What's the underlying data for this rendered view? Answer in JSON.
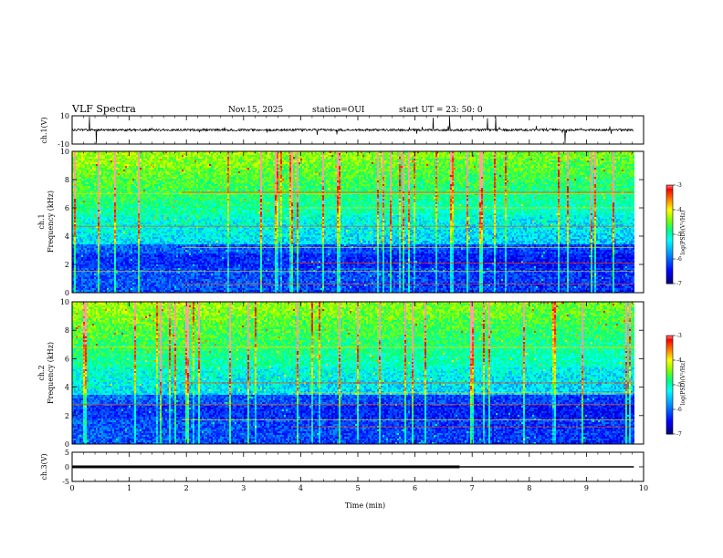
{
  "header": {
    "title": "VLF Spectra",
    "date": "Nov.15, 2025",
    "station": "station=OUI",
    "start": "start  UT  =   23: 50: 0"
  },
  "chart_data": [
    {
      "name": "ch1-waveform",
      "type": "line",
      "ylabel": "ch.1(V)",
      "ylim": [
        -10,
        10
      ],
      "yticks": [
        "10",
        "-10"
      ],
      "xlim": [
        0,
        10
      ],
      "baseline": 0,
      "data_end_min": 9.83
    },
    {
      "name": "ch1-spectrogram",
      "type": "heatmap",
      "ylabel_line1": "ch.1",
      "ylabel_line2": "Frequency  (kHz)",
      "xlim": [
        0,
        10
      ],
      "ylim": [
        0,
        10
      ],
      "yticks": [
        "0",
        "2",
        "4",
        "6",
        "8",
        "10"
      ],
      "data_end_min": 9.83,
      "colorbar": {
        "label": "log(PSD)(V²/Hz)",
        "range": [
          -7,
          -3
        ],
        "ticks": [
          "-3",
          "-4",
          "-5",
          "-6",
          "-7"
        ],
        "colormap": [
          "#000080",
          "#0000ff",
          "#00a0ff",
          "#00ffff",
          "#00ff80",
          "#80ff00",
          "#ffff00",
          "#ff8000",
          "#ff0000",
          "#ffffff"
        ]
      },
      "lines_khz": [
        7.0,
        7.1,
        6.0,
        4.7,
        3.2,
        2.1,
        1.5,
        0.6
      ]
    },
    {
      "name": "ch2-spectrogram",
      "type": "heatmap",
      "ylabel_line1": "ch.2",
      "ylabel_line2": "Frequency  (kHz)",
      "xlim": [
        0,
        10
      ],
      "ylim": [
        0,
        10
      ],
      "yticks": [
        "0",
        "2",
        "4",
        "6",
        "8",
        "10"
      ],
      "data_end_min": 9.83,
      "colorbar": {
        "label": "log(PSD)(V²/Hz)",
        "range": [
          -7,
          -3
        ],
        "ticks": [
          "-3",
          "-4",
          "-5",
          "-6",
          "-7"
        ],
        "colormap": [
          "#000080",
          "#0000ff",
          "#00a0ff",
          "#00ffff",
          "#00ff80",
          "#80ff00",
          "#ffff00",
          "#ff8000",
          "#ff0000",
          "#ffffff"
        ]
      },
      "lines_khz": [
        6.8,
        4.3,
        3.6,
        2.8,
        1.7,
        1.2
      ]
    },
    {
      "name": "ch3-waveform",
      "type": "line",
      "ylabel": "ch.3(V)",
      "ylim": [
        -5,
        5
      ],
      "yticks": [
        "5",
        "0",
        "-5"
      ],
      "xlim": [
        0,
        10
      ],
      "level": 0,
      "thick_end_min": 6.78,
      "data_end_min": 9.83
    }
  ],
  "xaxis": {
    "label": "Time  (min)",
    "ticks": [
      "0",
      "1",
      "2",
      "3",
      "4",
      "5",
      "6",
      "7",
      "8",
      "9",
      "10"
    ]
  }
}
